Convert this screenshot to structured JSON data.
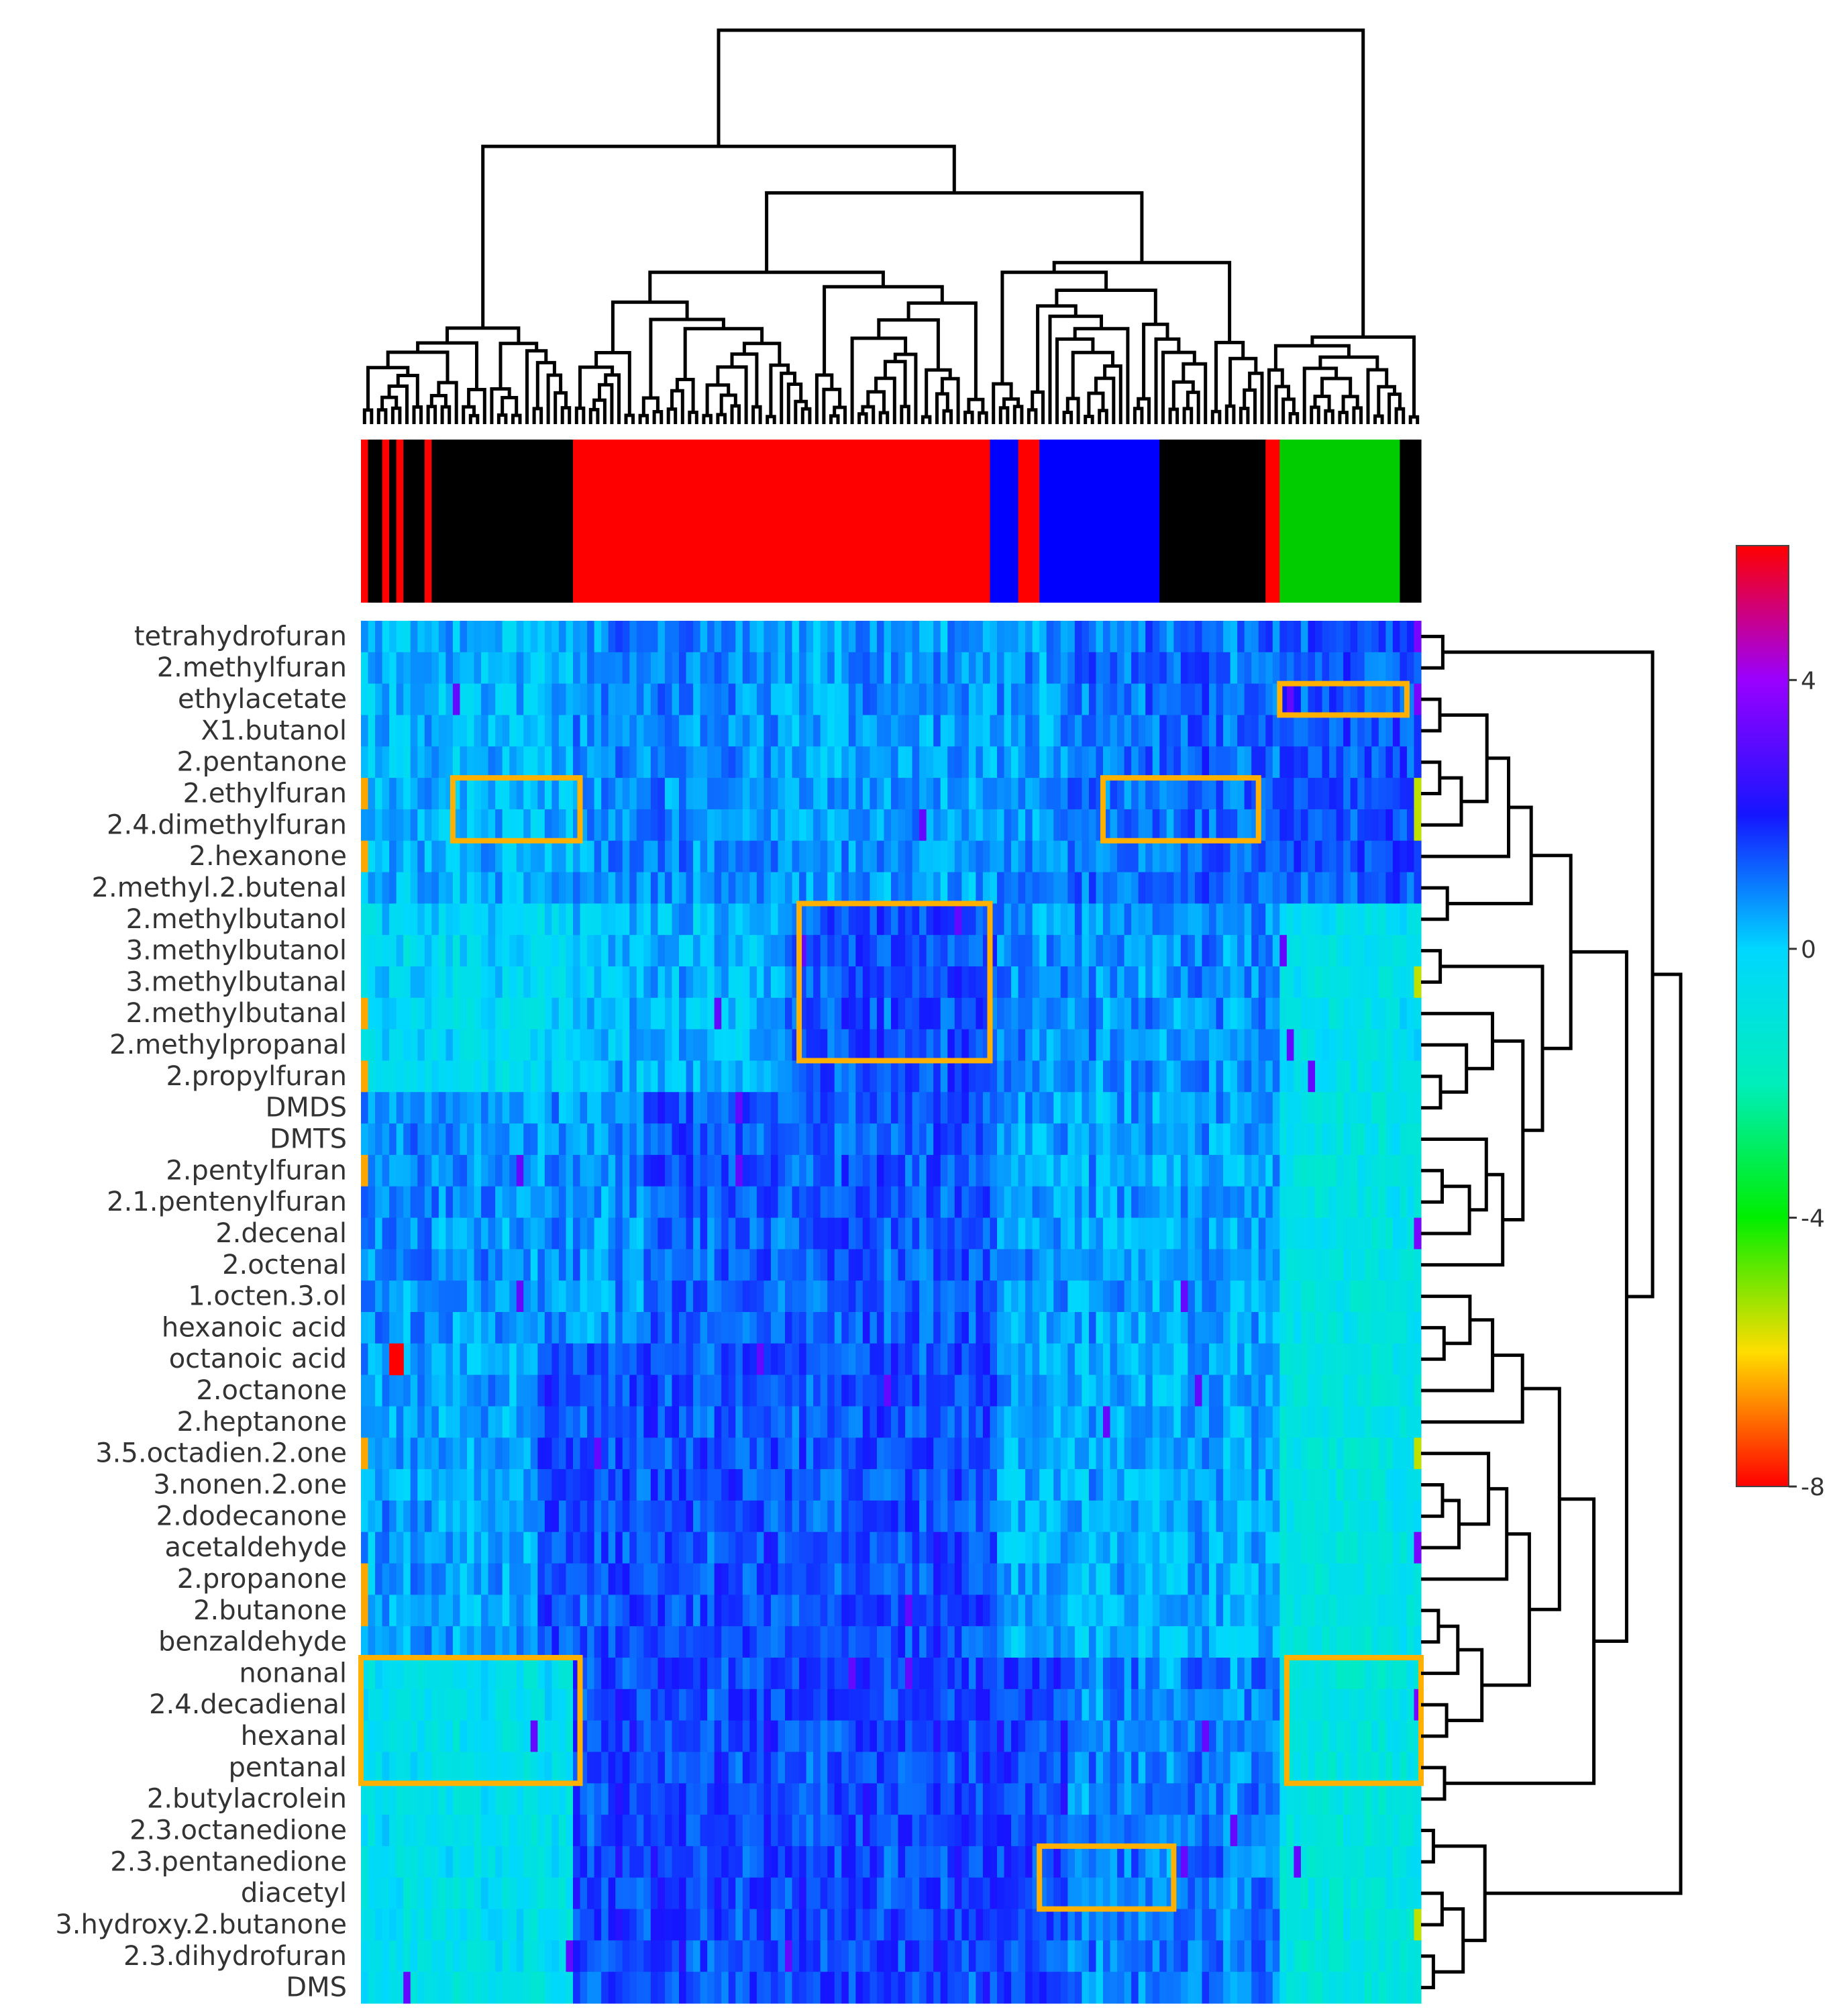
{
  "chart_data": {
    "type": "heatmap",
    "title": "",
    "xlabel": "",
    "ylabel": "",
    "rows": [
      "tetrahydrofuran",
      "2.methylfuran",
      "ethylacetate",
      "X1.butanol",
      "2.pentanone",
      "2.ethylfuran",
      "2.4.dimethylfuran",
      "2.hexanone",
      "2.methyl.2.butenal",
      "2.methylbutanol",
      "3.methylbutanol",
      "3.methylbutanal",
      "2.methylbutanal",
      "2.methylpropanal",
      "2.propylfuran",
      "DMDS",
      "DMTS",
      "2.pentylfuran",
      "2.1.pentenylfuran",
      "2.decenal",
      "2.octenal",
      "1.octen.3.ol",
      "hexanoic  acid",
      "octanoic acid",
      "2.octanone",
      "2.heptanone",
      "3.5.octadien.2.one",
      "3.nonen.2.one",
      "2.dodecanone",
      "acetaldehyde",
      "2.propanone",
      "2.butanone",
      "benzaldehyde",
      "nonanal",
      "2.4.decadienal",
      "hexanal",
      "pentanal",
      "2.butylacrolein",
      "2.3.octanedione",
      "2.3.pentanedione",
      "diacetyl",
      "3.hydroxy.2.butanone",
      "2.3.dihydrofuran",
      "DMS"
    ],
    "n_columns": 150,
    "value_range": [
      -8,
      6
    ],
    "colorscale": {
      "stops": [
        -8,
        -6,
        -4,
        -2,
        0,
        2,
        4,
        6
      ],
      "colors": [
        "#ff0000",
        "#ffdd00",
        "#00ee00",
        "#00eebb",
        "#00d7ff",
        "#1515ff",
        "#9a00ff",
        "#ff0000"
      ],
      "ticks": [
        4,
        0,
        -4,
        -8
      ],
      "tick_labels": [
        "4",
        "0",
        "-4",
        "-8"
      ]
    },
    "group_bar": {
      "colors": [
        "#ff0000",
        "#000000",
        "#0000ff",
        "#00cc00"
      ],
      "segments": [
        {
          "color": "#ff0000",
          "start": 0,
          "end": 1
        },
        {
          "color": "#000000",
          "start": 1,
          "end": 3
        },
        {
          "color": "#ff0000",
          "start": 3,
          "end": 4
        },
        {
          "color": "#000000",
          "start": 4,
          "end": 5
        },
        {
          "color": "#ff0000",
          "start": 5,
          "end": 6
        },
        {
          "color": "#000000",
          "start": 6,
          "end": 9
        },
        {
          "color": "#ff0000",
          "start": 9,
          "end": 10
        },
        {
          "color": "#000000",
          "start": 10,
          "end": 30
        },
        {
          "color": "#ff0000",
          "start": 30,
          "end": 89
        },
        {
          "color": "#0000ff",
          "start": 89,
          "end": 93
        },
        {
          "color": "#ff0000",
          "start": 93,
          "end": 96
        },
        {
          "color": "#0000ff",
          "start": 96,
          "end": 113
        },
        {
          "color": "#000000",
          "start": 113,
          "end": 128
        },
        {
          "color": "#ff0000",
          "start": 128,
          "end": 130
        },
        {
          "color": "#00cc00",
          "start": 130,
          "end": 147
        },
        {
          "color": "#000000",
          "start": 147,
          "end": 150
        }
      ]
    },
    "highlight_boxes": [
      {
        "col_start": 13,
        "col_end": 31,
        "row_start": 5,
        "row_end": 7
      },
      {
        "col_start": 62,
        "col_end": 89,
        "row_start": 9,
        "row_end": 14
      },
      {
        "col_start": 105,
        "col_end": 127,
        "row_start": 5,
        "row_end": 7
      },
      {
        "col_start": 130,
        "col_end": 148,
        "row_start": 2,
        "row_end": 3
      },
      {
        "col_start": 0,
        "col_end": 31,
        "row_start": 33,
        "row_end": 37
      },
      {
        "col_start": 131,
        "col_end": 150,
        "row_start": 33,
        "row_end": 37
      },
      {
        "col_start": 96,
        "col_end": 115,
        "row_start": 39,
        "row_end": 41
      }
    ],
    "highlight_color": "#ffb000",
    "column_dendrogram": true,
    "row_dendrogram": true,
    "legend": "right"
  }
}
